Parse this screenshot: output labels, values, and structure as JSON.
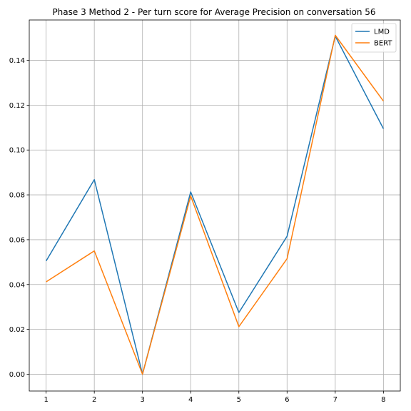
{
  "chart_data": {
    "type": "line",
    "title": "Phase 3 Method 2 - Per turn score for Average Precision on conversation 56",
    "xlabel": "",
    "ylabel": "",
    "x": [
      1,
      2,
      3,
      4,
      5,
      6,
      7,
      8
    ],
    "x_ticks": [
      "1",
      "2",
      "3",
      "4",
      "5",
      "6",
      "7",
      "8"
    ],
    "y_ticks": [
      "0.00",
      "0.02",
      "0.04",
      "0.06",
      "0.08",
      "0.10",
      "0.12",
      "0.14"
    ],
    "xlim": [
      0.65,
      8.35
    ],
    "ylim": [
      -0.0075,
      0.158
    ],
    "grid": true,
    "legend_position": "top-right",
    "series": [
      {
        "name": "LMD",
        "color": "#1f77b4",
        "values": [
          0.0505,
          0.0868,
          0.0,
          0.0813,
          0.0275,
          0.0615,
          0.1508,
          0.1095
        ]
      },
      {
        "name": "BERT",
        "color": "#ff7f0e",
        "values": [
          0.0412,
          0.055,
          0.0,
          0.0795,
          0.0212,
          0.0515,
          0.1512,
          0.1218
        ]
      }
    ]
  }
}
